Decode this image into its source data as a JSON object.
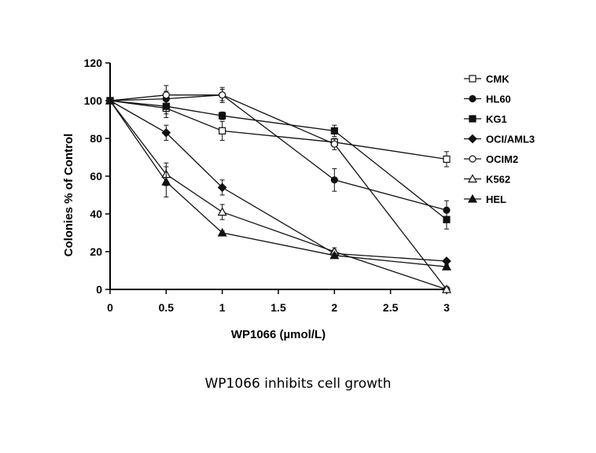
{
  "caption": "WP1066 inhibits cell growth",
  "chart_data": {
    "type": "line",
    "xlabel": "WP1066 (µmol/L)",
    "ylabel": "Colonies % of Control",
    "xlim": [
      0,
      3
    ],
    "ylim": [
      0,
      120
    ],
    "x_ticks": [
      "0",
      "0.5",
      "1",
      "1.5",
      "2",
      "2.5",
      "3"
    ],
    "y_ticks": [
      "0",
      "20",
      "40",
      "60",
      "80",
      "100",
      "120"
    ],
    "grid": false,
    "legend_position": "right",
    "x": [
      0,
      0.5,
      1,
      2,
      3
    ],
    "series": [
      {
        "name": "CMK",
        "marker": "square-open",
        "values": [
          100,
          96,
          84,
          78,
          69
        ],
        "errors": [
          1,
          5,
          5,
          2,
          4
        ]
      },
      {
        "name": "HL60",
        "marker": "circle-filled",
        "values": [
          100,
          101,
          103,
          58,
          42
        ],
        "errors": [
          1,
          4,
          4,
          6,
          5
        ]
      },
      {
        "name": "KG1",
        "marker": "square-filled",
        "values": [
          100,
          97,
          92,
          84,
          37
        ],
        "errors": [
          1,
          4,
          2,
          3,
          5
        ]
      },
      {
        "name": "OCI/AML3",
        "marker": "diamond-filled",
        "values": [
          100,
          83,
          54,
          19,
          15
        ],
        "errors": [
          1,
          4,
          4,
          2,
          1
        ]
      },
      {
        "name": "OCIM2",
        "marker": "circle-open",
        "values": [
          100,
          103,
          103,
          77,
          0
        ],
        "errors": [
          1,
          5,
          3,
          3,
          1
        ]
      },
      {
        "name": "K562",
        "marker": "triangle-open",
        "values": [
          100,
          61,
          41,
          20,
          0
        ],
        "errors": [
          1,
          6,
          4,
          2,
          1
        ]
      },
      {
        "name": "HEL",
        "marker": "triangle-filled",
        "values": [
          100,
          57,
          30,
          18,
          12
        ],
        "errors": [
          1,
          8,
          1,
          1,
          1
        ]
      }
    ]
  }
}
